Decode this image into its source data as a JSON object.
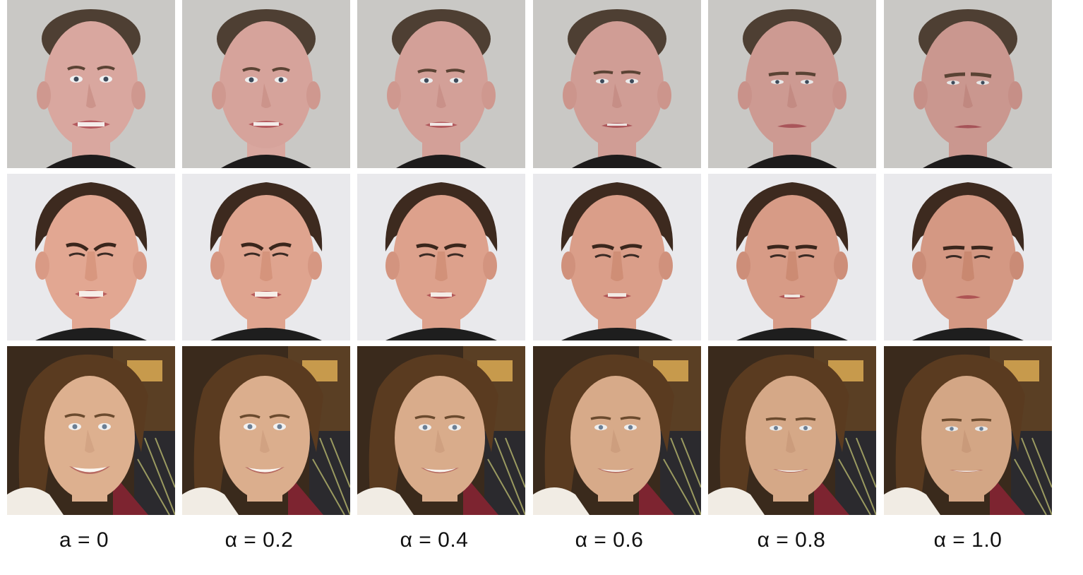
{
  "captions": [
    "a = 0",
    "α = 0.2",
    "α = 0.4",
    "α = 0.6",
    "α = 0.8",
    "α = 1.0"
  ],
  "rows": [
    {
      "subject": "man-with-slicked-hair",
      "background": "#c9c8c5",
      "skin": "#d9a79f",
      "hair": "#4e3f33",
      "shirt": "#1d1b1b",
      "expression": "fearful-grimace"
    },
    {
      "subject": "young-man-brown-hair",
      "background": "#e9e9ec",
      "skin": "#e2a792",
      "hair": "#3d2a1f",
      "shirt": "#1e1e1e",
      "expression": "disgusted-scowl"
    },
    {
      "subject": "smiling-woman",
      "background": "#3a2a1c",
      "skin": "#ddb08f",
      "hair": "#5a3b20",
      "shirt": "#f1ece4",
      "expression": "smile"
    }
  ]
}
